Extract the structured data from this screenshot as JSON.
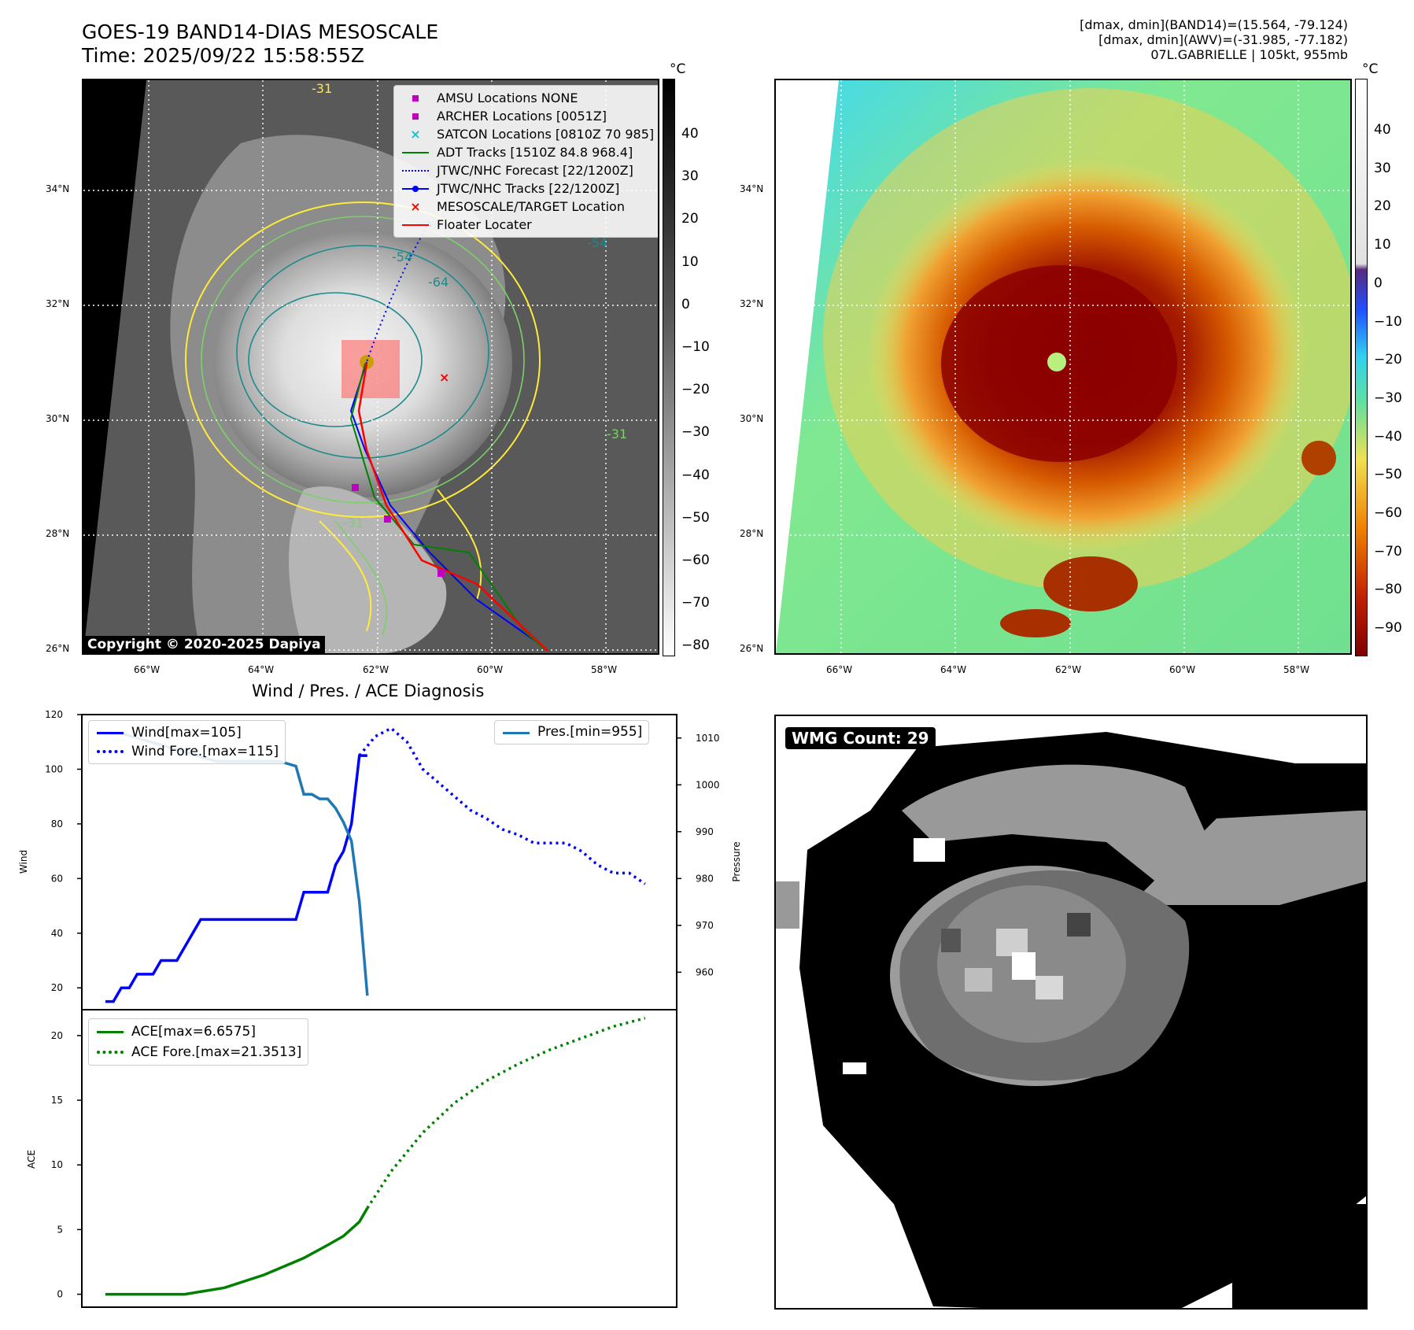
{
  "header": {
    "title_line1": "GOES-19 BAND14-DIAS MESOSCALE",
    "title_line2": "Time: 2025/09/22 15:58:55Z",
    "info_line1": "[dmax, dmin](BAND14)=(15.564, -79.124)",
    "info_line2": "[dmax, dmin](AWV)=(-31.985, -77.182)",
    "info_line3": "07L.GABRIELLE | 105kt, 955mb"
  },
  "map": {
    "lat_labels": [
      "34°N",
      "32°N",
      "30°N",
      "28°N",
      "26°N"
    ],
    "lon_labels": [
      "66°W",
      "64°W",
      "62°W",
      "60°W",
      "58°W"
    ],
    "copyright": "Copyright © 2020-2025 Dapiya",
    "contour_labels": [
      "-54",
      "-64",
      "-54",
      "-31",
      "-31",
      "-31"
    ],
    "legend": [
      {
        "label": "AMSU Locations NONE",
        "symbol": "square",
        "color": "#c000c0"
      },
      {
        "label": "ARCHER Locations [0051Z]",
        "symbol": "square",
        "color": "#c000c0"
      },
      {
        "label": "SATCON Locations [0810Z 70 985]",
        "symbol": "x",
        "color": "#17becf"
      },
      {
        "label": "ADT Tracks [1510Z 84.8 968.4]",
        "symbol": "line",
        "color": "#008000"
      },
      {
        "label": "JTWC/NHC Forecast [22/1200Z]",
        "symbol": "dotted",
        "color": "#0000ff"
      },
      {
        "label": "JTWC/NHC Tracks [22/1200Z]",
        "symbol": "line-dot",
        "color": "#0000ff"
      },
      {
        "label": "MESOSCALE/TARGET Location",
        "symbol": "x",
        "color": "#ff0000"
      },
      {
        "label": "Floater Locater",
        "symbol": "line",
        "color": "#ff0000"
      }
    ]
  },
  "colorbars": {
    "unit": "°C",
    "left_ticks": [
      "40",
      "30",
      "20",
      "10",
      "0",
      "−10",
      "−20",
      "−30",
      "−40",
      "−50",
      "−60",
      "−70",
      "−80"
    ],
    "right_ticks": [
      "40",
      "30",
      "20",
      "10",
      "0",
      "−10",
      "−20",
      "−30",
      "−40",
      "−50",
      "−60",
      "−70",
      "−80",
      "−90"
    ]
  },
  "wmg": {
    "count_label": "WMG Count: 29"
  },
  "chart_data": [
    {
      "type": "line",
      "title": "Wind / Pres. / ACE Diagnosis",
      "ylabel": "Wind",
      "ylabel_right": "Pressure",
      "ylim": [
        12,
        120
      ],
      "ylim_right": [
        952,
        1015
      ],
      "yticks": [
        20,
        40,
        60,
        80,
        100,
        120
      ],
      "yticks_right": [
        960,
        970,
        980,
        990,
        1000,
        1010
      ],
      "series": [
        {
          "name": "Wind[max=105]",
          "axis": "left",
          "style": "solid",
          "color": "#0000ff",
          "x": [
            0,
            1,
            2,
            3,
            4,
            5,
            6,
            7,
            8,
            9,
            10,
            11,
            12,
            13,
            14,
            15,
            16,
            17,
            18,
            19,
            20,
            21,
            22,
            23,
            24,
            25,
            26,
            27,
            28,
            29,
            30,
            31,
            32,
            33
          ],
          "values": [
            15,
            15,
            20,
            20,
            25,
            25,
            25,
            30,
            30,
            30,
            35,
            40,
            45,
            45,
            45,
            45,
            45,
            45,
            45,
            45,
            45,
            45,
            45,
            45,
            45,
            55,
            55,
            55,
            55,
            65,
            70,
            80,
            105,
            105
          ]
        },
        {
          "name": "Wind Fore.[max=115]",
          "axis": "left",
          "style": "dotted",
          "color": "#0000ff",
          "x": [
            32,
            34,
            36,
            38,
            40,
            42,
            44,
            46,
            48,
            50,
            52,
            54,
            56,
            58,
            60,
            62,
            64,
            66,
            68
          ],
          "values": [
            105,
            112,
            115,
            110,
            100,
            95,
            90,
            85,
            82,
            78,
            76,
            73,
            73,
            73,
            70,
            65,
            62,
            62,
            58
          ]
        },
        {
          "name": "Pres.[min=955]",
          "axis": "right",
          "style": "solid",
          "color": "#1f77b4",
          "x": [
            0,
            2,
            4,
            6,
            8,
            10,
            12,
            14,
            16,
            18,
            20,
            22,
            24,
            25,
            26,
            27,
            28,
            29,
            30,
            31,
            32,
            33
          ],
          "values": [
            1011,
            1011,
            1010,
            1009,
            1008,
            1007,
            1006,
            1005,
            1005,
            1005,
            1005,
            1005,
            1004,
            998,
            998,
            997,
            997,
            995,
            992,
            988,
            975,
            955
          ]
        }
      ]
    },
    {
      "type": "line",
      "ylabel": "ACE",
      "ylim": [
        -1,
        22
      ],
      "yticks": [
        0,
        5,
        10,
        15,
        20
      ],
      "series": [
        {
          "name": "ACE[max=6.6575]",
          "style": "solid",
          "color": "#008000",
          "x": [
            0,
            5,
            10,
            15,
            20,
            25,
            28,
            30,
            32,
            33
          ],
          "values": [
            0,
            0,
            0,
            0.5,
            1.5,
            2.8,
            3.8,
            4.5,
            5.6,
            6.6575
          ]
        },
        {
          "name": "ACE Fore.[max=21.3513]",
          "style": "dotted",
          "color": "#008000",
          "x": [
            33,
            36,
            40,
            44,
            48,
            52,
            56,
            60,
            64,
            68
          ],
          "values": [
            6.6575,
            9.5,
            12.5,
            14.8,
            16.5,
            17.8,
            18.9,
            19.8,
            20.7,
            21.3513
          ]
        }
      ]
    }
  ]
}
